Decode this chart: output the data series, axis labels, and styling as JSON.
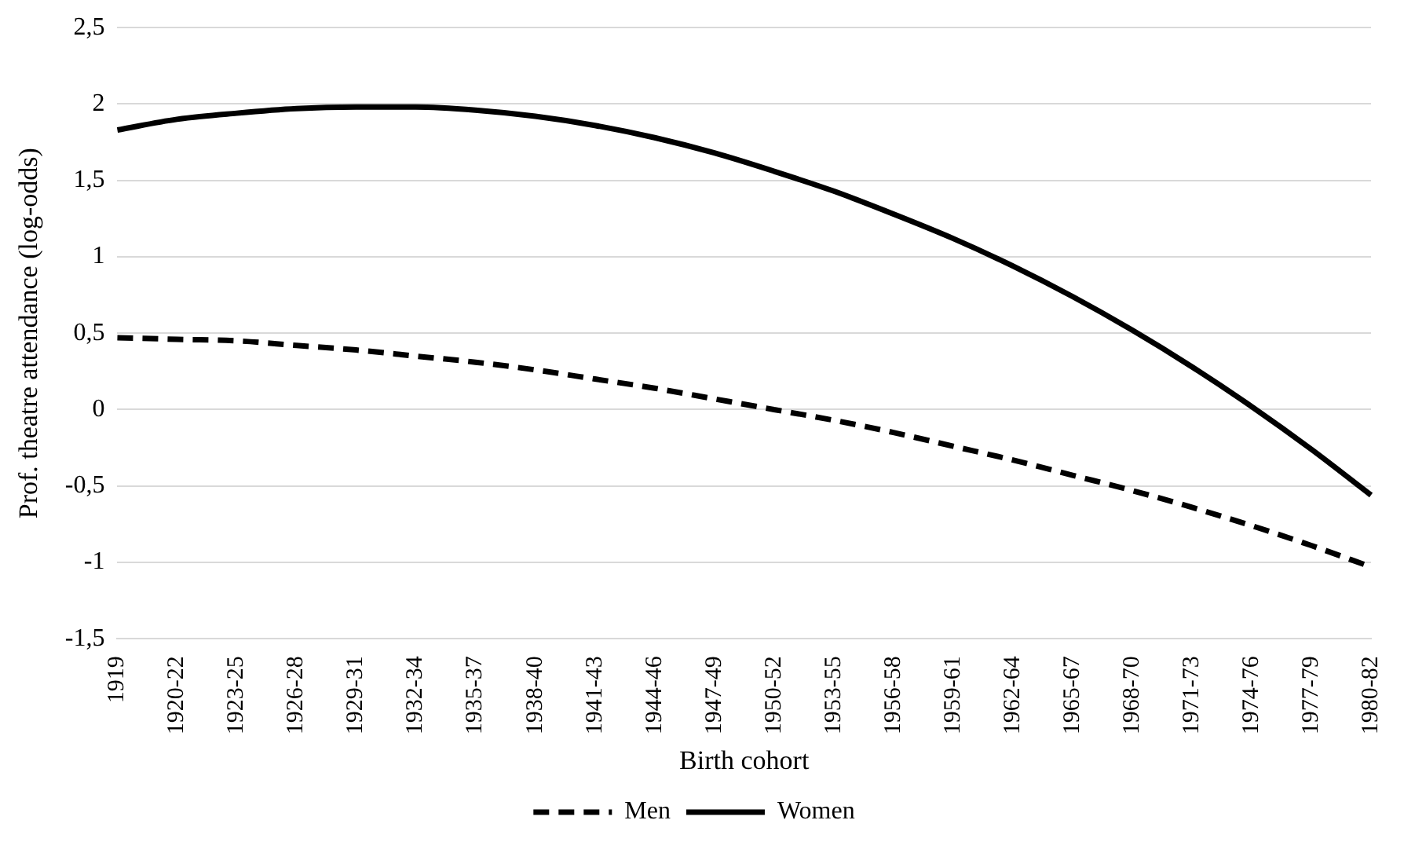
{
  "chart_data": {
    "type": "line",
    "xlabel": "Birth cohort",
    "ylabel": "Prof. theatre attendance (log-odds)",
    "categories": [
      "1919",
      "1920-22",
      "1923-25",
      "1926-28",
      "1929-31",
      "1932-34",
      "1935-37",
      "1938-40",
      "1941-43",
      "1944-46",
      "1947-49",
      "1950-52",
      "1953-55",
      "1956-58",
      "1959-61",
      "1962-64",
      "1965-67",
      "1968-70",
      "1971-73",
      "1974-76",
      "1977-79",
      "1980-82"
    ],
    "series": [
      {
        "name": "Men",
        "color": "#000000",
        "line_style": "dashed",
        "values": [
          0.47,
          0.46,
          0.45,
          0.42,
          0.39,
          0.35,
          0.31,
          0.26,
          0.2,
          0.14,
          0.07,
          0.0,
          -0.07,
          -0.15,
          -0.24,
          -0.33,
          -0.43,
          -0.53,
          -0.64,
          -0.76,
          -0.89,
          -1.03
        ]
      },
      {
        "name": "Women",
        "color": "#000000",
        "line_style": "solid",
        "values": [
          1.83,
          1.9,
          1.94,
          1.97,
          1.98,
          1.98,
          1.96,
          1.92,
          1.86,
          1.78,
          1.68,
          1.56,
          1.43,
          1.28,
          1.12,
          0.94,
          0.74,
          0.52,
          0.28,
          0.02,
          -0.26,
          -0.56
        ]
      }
    ],
    "ylim": [
      -1.5,
      2.5
    ],
    "yticks": [
      {
        "value": -1.5,
        "label": "-1,5"
      },
      {
        "value": -1,
        "label": "-1"
      },
      {
        "value": -0.5,
        "label": "-0,5"
      },
      {
        "value": 0,
        "label": "0"
      },
      {
        "value": 0.5,
        "label": "0,5"
      },
      {
        "value": 1,
        "label": "1"
      },
      {
        "value": 1.5,
        "label": "1,5"
      },
      {
        "value": 2,
        "label": "2"
      },
      {
        "value": 2.5,
        "label": "2,5"
      }
    ],
    "grid": "y",
    "legend": "bottom",
    "marker": "none"
  }
}
